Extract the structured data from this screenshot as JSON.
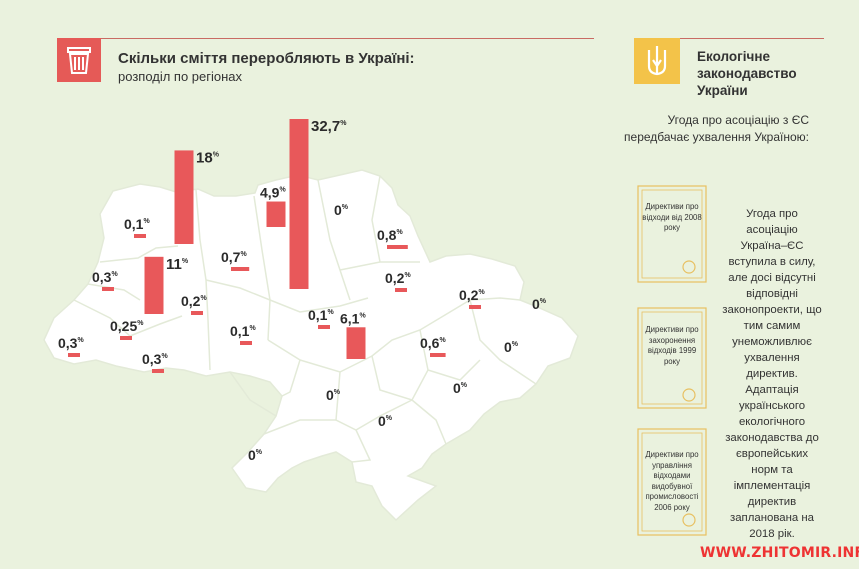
{
  "header": {
    "title": "Скільки сміття переробляють в Україні:",
    "subtitle": "розподіл по регіонах"
  },
  "sidebar": {
    "title_lines": [
      "Екологічне",
      "законодавство",
      "України"
    ],
    "intro": "Угода про асоціацію з ЄС передбачає ухвалення Україною:",
    "directives": [
      "Директиви про відходи від 2008 року",
      "Директиви про захоронення відходів 1999 року",
      "Директиви про управління відходами видобувної промисловості 2006 року"
    ],
    "note": "Угода про асоціацію Україна–ЄС вступила в силу, але досі відсутні відповідні законопроекти, що тим самим унеможливлює ухвалення директив. Адаптація українського екологічного законодавства до європейських норм та імплементація директив запланована на 2018 рік.",
    "icons": [
      "trash-bin-icon",
      "trident-icon",
      "certificate-icon"
    ]
  },
  "footer": {
    "site": "WWW.ZHITOMIR.INFO"
  },
  "colors": {
    "bar": "#e8585a",
    "accent_gold": "#f3c349",
    "map_fill": "#ffffff",
    "background": "#eaf2de"
  },
  "chart_data": {
    "type": "bar",
    "unit": "%",
    "categories": [
      "1",
      "2",
      "3",
      "4",
      "5",
      "6",
      "7",
      "8",
      "9",
      "10",
      "11",
      "12",
      "13",
      "14",
      "15",
      "16",
      "17",
      "18",
      "19",
      "20",
      "21",
      "22",
      "23",
      "24",
      "25"
    ],
    "labels": [
      "0,1",
      "18",
      "11",
      "0,3",
      "0,25",
      "0,3",
      "0,3",
      "0,2",
      "0,7",
      "0,1",
      "4,9",
      "32,7",
      "0",
      "0,8",
      "0,2",
      "0,1",
      "6,1",
      "0,2",
      "0,6",
      "0",
      "0",
      "0",
      "0",
      "0",
      "0"
    ],
    "values": [
      0.1,
      18,
      11,
      0.3,
      0.25,
      0.3,
      0.3,
      0.2,
      0.7,
      0.1,
      4.9,
      32.7,
      0,
      0.8,
      0.2,
      0.1,
      6.1,
      0.2,
      0.6,
      0,
      0,
      0,
      0,
      0,
      0
    ]
  }
}
